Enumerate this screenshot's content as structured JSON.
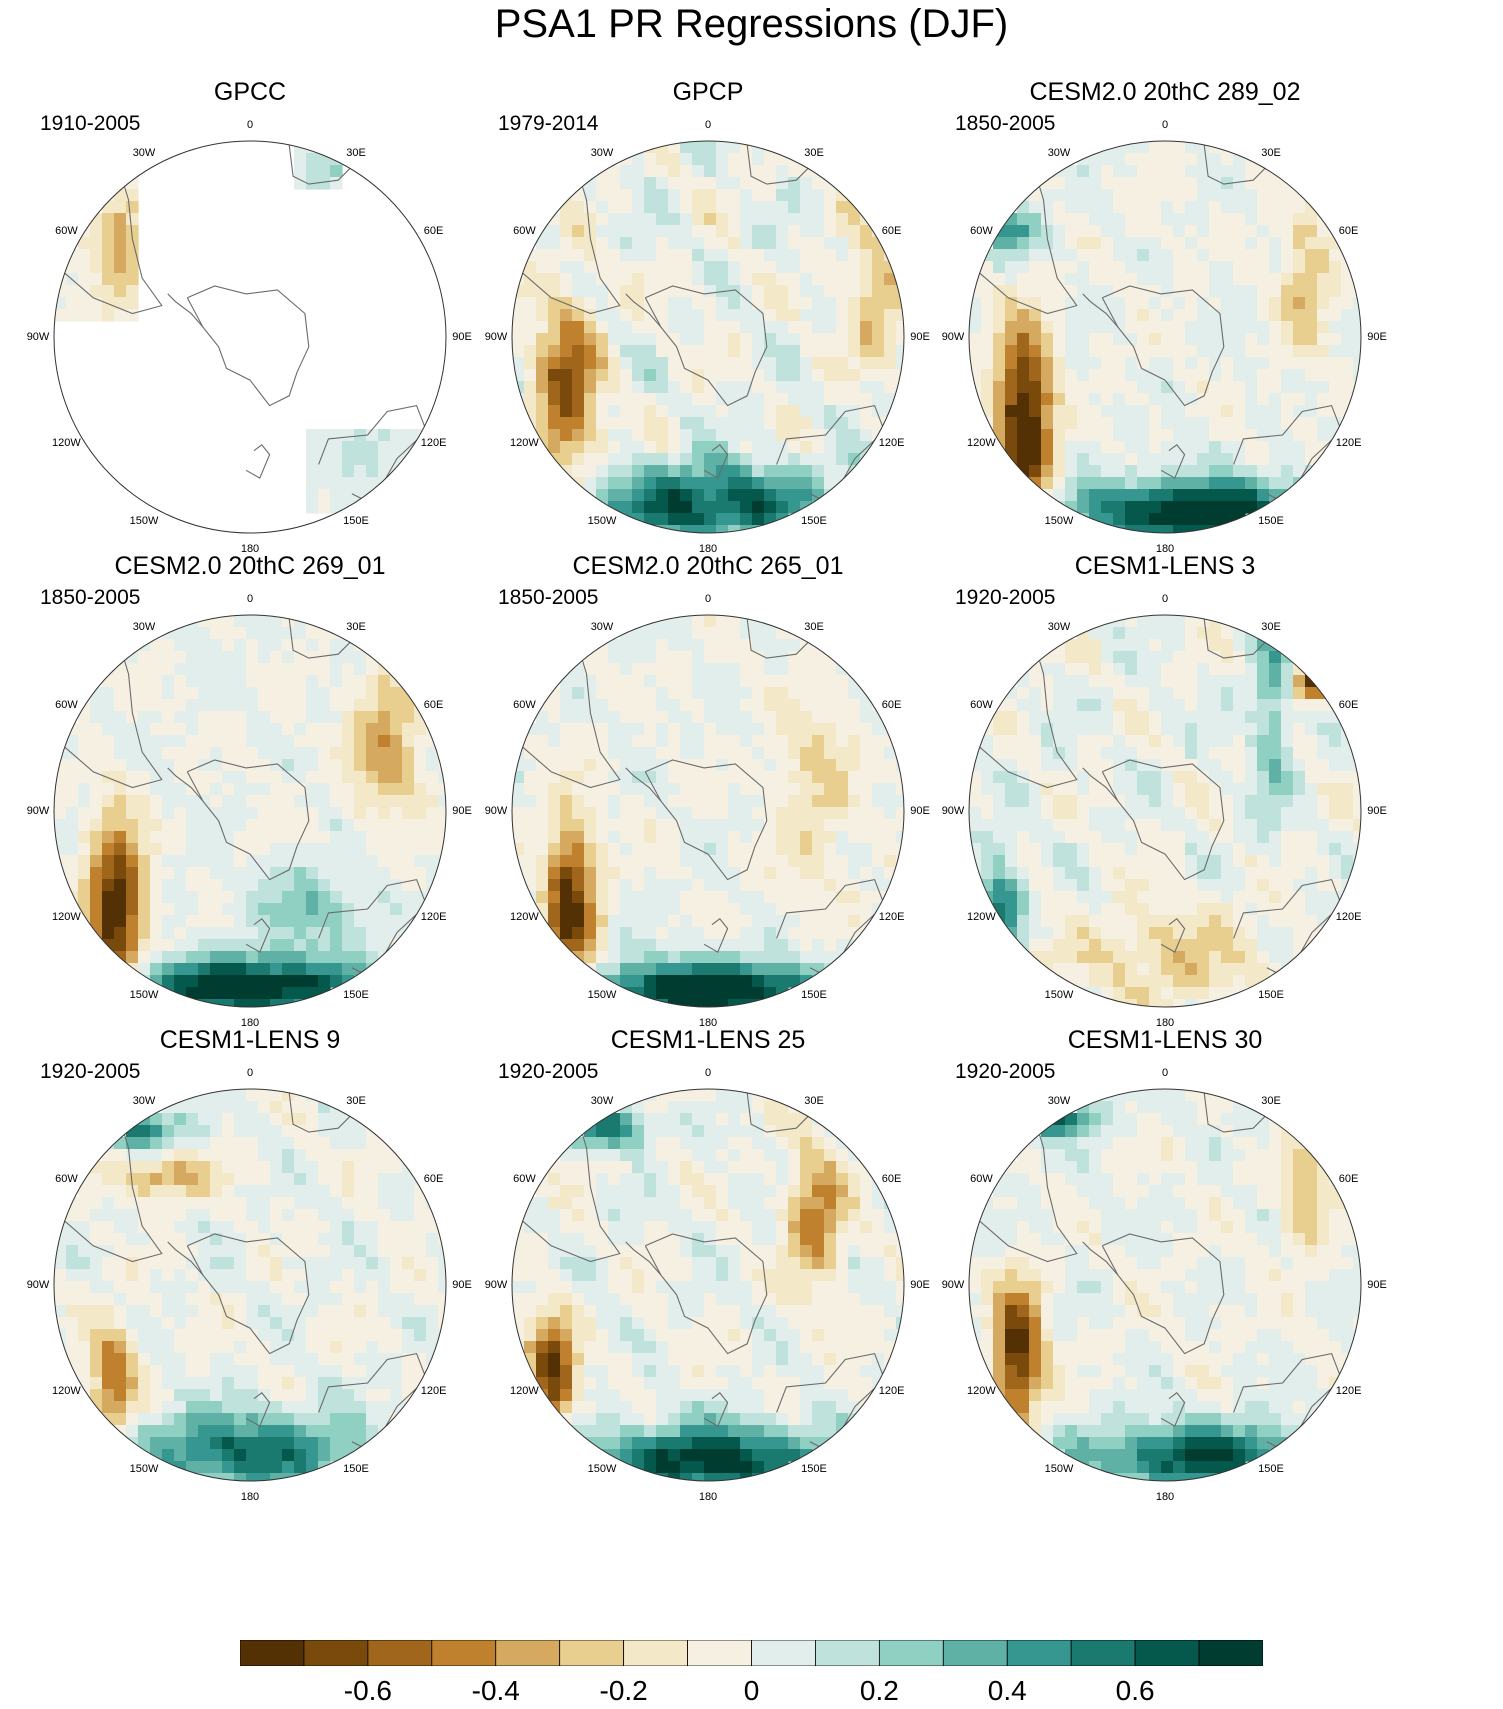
{
  "title": "PSA1 PR Regressions (DJF)",
  "longitude_labels": [
    "0",
    "30E",
    "60E",
    "90E",
    "120E",
    "150E",
    "180",
    "150W",
    "120W",
    "90W",
    "60W",
    "30W"
  ],
  "panels": [
    {
      "title": "GPCC",
      "period": "1910-2005",
      "pattern": "gpcc",
      "land_only": true
    },
    {
      "title": "GPCP",
      "period": "1979-2014",
      "pattern": "gpcp",
      "land_only": false
    },
    {
      "title": "CESM2.0 20thC 289_02",
      "period": "1850-2005",
      "pattern": "model_a",
      "land_only": false
    },
    {
      "title": "CESM2.0 20thC 269_01",
      "period": "1850-2005",
      "pattern": "model_b",
      "land_only": false
    },
    {
      "title": "CESM2.0 20thC 265_01",
      "period": "1850-2005",
      "pattern": "model_c",
      "land_only": false
    },
    {
      "title": "CESM1-LENS 3",
      "period": "1920-2005",
      "pattern": "lens3",
      "land_only": false
    },
    {
      "title": "CESM1-LENS 9",
      "period": "1920-2005",
      "pattern": "lens9",
      "land_only": false
    },
    {
      "title": "CESM1-LENS 25",
      "period": "1920-2005",
      "pattern": "lens25",
      "land_only": false
    },
    {
      "title": "CESM1-LENS 30",
      "period": "1920-2005",
      "pattern": "lens30",
      "land_only": false
    }
  ],
  "colorbar": {
    "colors": [
      "#543005",
      "#7a4a0d",
      "#a0661c",
      "#bf812d",
      "#d5a95f",
      "#e8cf8f",
      "#f3e8c8",
      "#f5f0e2",
      "#e2eeec",
      "#bfe3dc",
      "#8fd0c2",
      "#5fb1a5",
      "#35978f",
      "#1a7a6f",
      "#05584c",
      "#003c30"
    ],
    "labels": [
      "-0.6",
      "-0.4",
      "-0.2",
      "0",
      "0.2",
      "0.4",
      "0.6"
    ],
    "label_values": [
      -0.6,
      -0.4,
      -0.2,
      0,
      0.2,
      0.4,
      0.6
    ],
    "min": -0.8,
    "max": 0.8
  }
}
